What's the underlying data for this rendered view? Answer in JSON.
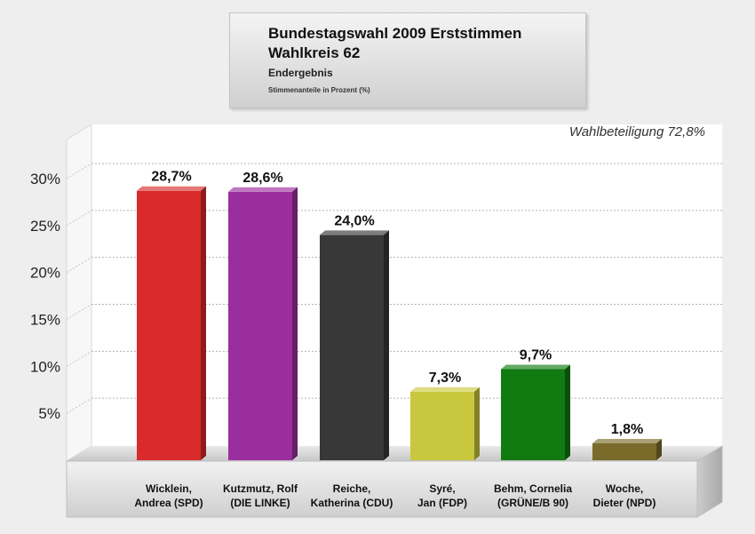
{
  "header": {
    "title": "Bundestagswahl 2009 Erststimmen",
    "subtitle": "Wahlkreis 62",
    "status": "Endergebnis",
    "note": "Stimmenanteile in Prozent (%)"
  },
  "turnout_label": "Wahlbeteiligung 72,8%",
  "chart_data": {
    "type": "bar",
    "ylim": [
      0,
      35
    ],
    "yticks": [
      5,
      10,
      15,
      20,
      25,
      30
    ],
    "ytick_labels": [
      "5%",
      "10%",
      "15%",
      "20%",
      "25%",
      "30%"
    ],
    "grid": true,
    "categories": [
      [
        "Wicklein,",
        "Andrea (SPD)"
      ],
      [
        "Kutzmutz, Rolf",
        "(DIE LINKE)"
      ],
      [
        "Reiche,",
        "Katherina (CDU)"
      ],
      [
        "Syré,",
        "Jan (FDP)"
      ],
      [
        "Behm, Cornelia",
        "(GRÜNE/B 90)"
      ],
      [
        "Woche,",
        "Dieter (NPD)"
      ]
    ],
    "values": [
      28.7,
      28.6,
      24.0,
      7.3,
      9.7,
      1.8
    ],
    "value_labels": [
      "28,7%",
      "28,6%",
      "24,0%",
      "7,3%",
      "9,7%",
      "1,8%"
    ],
    "colors": [
      "#d92b2b",
      "#9b2e9e",
      "#383838",
      "#c9c73d",
      "#117a11",
      "#7a6b2a"
    ]
  }
}
